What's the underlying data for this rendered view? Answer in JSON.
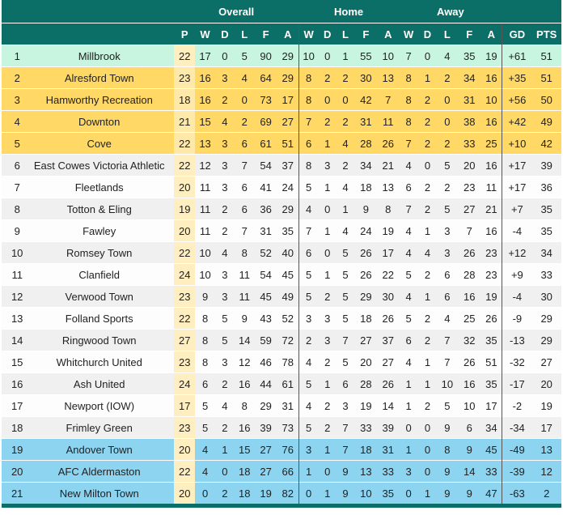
{
  "header_groups": {
    "overall": "Overall",
    "home": "Home",
    "away": "Away"
  },
  "columns": {
    "p": "P",
    "w": "W",
    "d": "D",
    "l": "L",
    "f": "F",
    "a": "A",
    "hw": "W",
    "hd": "D",
    "hl": "L",
    "hf": "F",
    "ha": "A",
    "aw": "W",
    "ad": "D",
    "al": "L",
    "af": "F",
    "aa": "A",
    "gd": "GD",
    "pts": "PTS"
  },
  "colors": {
    "header": "#0b6e67",
    "champion": "#c8f5df",
    "promotion": "#ffd866",
    "relegation": "#8dd4f1",
    "played": "#ffeebf"
  },
  "rows": [
    {
      "pos": "1",
      "team": "Millbrook",
      "p": "22",
      "w": "17",
      "d": "0",
      "l": "5",
      "f": "90",
      "a": "29",
      "hw": "10",
      "hd": "0",
      "hl": "1",
      "hf": "55",
      "ha": "10",
      "aw": "7",
      "ad": "0",
      "al": "4",
      "af": "35",
      "aa": "19",
      "gd": "+61",
      "pts": "51"
    },
    {
      "pos": "2",
      "team": "Alresford Town",
      "p": "23",
      "w": "16",
      "d": "3",
      "l": "4",
      "f": "64",
      "a": "29",
      "hw": "8",
      "hd": "2",
      "hl": "2",
      "hf": "30",
      "ha": "13",
      "aw": "8",
      "ad": "1",
      "al": "2",
      "af": "34",
      "aa": "16",
      "gd": "+35",
      "pts": "51"
    },
    {
      "pos": "3",
      "team": "Hamworthy Recreation",
      "p": "18",
      "w": "16",
      "d": "2",
      "l": "0",
      "f": "73",
      "a": "17",
      "hw": "8",
      "hd": "0",
      "hl": "0",
      "hf": "42",
      "ha": "7",
      "aw": "8",
      "ad": "2",
      "al": "0",
      "af": "31",
      "aa": "10",
      "gd": "+56",
      "pts": "50"
    },
    {
      "pos": "4",
      "team": "Downton",
      "p": "21",
      "w": "15",
      "d": "4",
      "l": "2",
      "f": "69",
      "a": "27",
      "hw": "7",
      "hd": "2",
      "hl": "2",
      "hf": "31",
      "ha": "11",
      "aw": "8",
      "ad": "2",
      "al": "0",
      "af": "38",
      "aa": "16",
      "gd": "+42",
      "pts": "49"
    },
    {
      "pos": "5",
      "team": "Cove",
      "p": "22",
      "w": "13",
      "d": "3",
      "l": "6",
      "f": "61",
      "a": "51",
      "hw": "6",
      "hd": "1",
      "hl": "4",
      "hf": "28",
      "ha": "26",
      "aw": "7",
      "ad": "2",
      "al": "2",
      "af": "33",
      "aa": "25",
      "gd": "+10",
      "pts": "42"
    },
    {
      "pos": "6",
      "team": "East Cowes Victoria Athletic",
      "p": "22",
      "w": "12",
      "d": "3",
      "l": "7",
      "f": "54",
      "a": "37",
      "hw": "8",
      "hd": "3",
      "hl": "2",
      "hf": "34",
      "ha": "21",
      "aw": "4",
      "ad": "0",
      "al": "5",
      "af": "20",
      "aa": "16",
      "gd": "+17",
      "pts": "39"
    },
    {
      "pos": "7",
      "team": "Fleetlands",
      "p": "20",
      "w": "11",
      "d": "3",
      "l": "6",
      "f": "41",
      "a": "24",
      "hw": "5",
      "hd": "1",
      "hl": "4",
      "hf": "18",
      "ha": "13",
      "aw": "6",
      "ad": "2",
      "al": "2",
      "af": "23",
      "aa": "11",
      "gd": "+17",
      "pts": "36"
    },
    {
      "pos": "8",
      "team": "Totton & Eling",
      "p": "19",
      "w": "11",
      "d": "2",
      "l": "6",
      "f": "36",
      "a": "29",
      "hw": "4",
      "hd": "0",
      "hl": "1",
      "hf": "9",
      "ha": "8",
      "aw": "7",
      "ad": "2",
      "al": "5",
      "af": "27",
      "aa": "21",
      "gd": "+7",
      "pts": "35"
    },
    {
      "pos": "9",
      "team": "Fawley",
      "p": "20",
      "w": "11",
      "d": "2",
      "l": "7",
      "f": "31",
      "a": "35",
      "hw": "7",
      "hd": "1",
      "hl": "4",
      "hf": "24",
      "ha": "19",
      "aw": "4",
      "ad": "1",
      "al": "3",
      "af": "7",
      "aa": "16",
      "gd": "-4",
      "pts": "35"
    },
    {
      "pos": "10",
      "team": "Romsey Town",
      "p": "22",
      "w": "10",
      "d": "4",
      "l": "8",
      "f": "52",
      "a": "40",
      "hw": "6",
      "hd": "0",
      "hl": "5",
      "hf": "26",
      "ha": "17",
      "aw": "4",
      "ad": "4",
      "al": "3",
      "af": "26",
      "aa": "23",
      "gd": "+12",
      "pts": "34"
    },
    {
      "pos": "11",
      "team": "Clanfield",
      "p": "24",
      "w": "10",
      "d": "3",
      "l": "11",
      "f": "54",
      "a": "45",
      "hw": "5",
      "hd": "1",
      "hl": "5",
      "hf": "26",
      "ha": "22",
      "aw": "5",
      "ad": "2",
      "al": "6",
      "af": "28",
      "aa": "23",
      "gd": "+9",
      "pts": "33"
    },
    {
      "pos": "12",
      "team": "Verwood Town",
      "p": "23",
      "w": "9",
      "d": "3",
      "l": "11",
      "f": "45",
      "a": "49",
      "hw": "5",
      "hd": "2",
      "hl": "5",
      "hf": "29",
      "ha": "30",
      "aw": "4",
      "ad": "1",
      "al": "6",
      "af": "16",
      "aa": "19",
      "gd": "-4",
      "pts": "30"
    },
    {
      "pos": "13",
      "team": "Folland Sports",
      "p": "22",
      "w": "8",
      "d": "5",
      "l": "9",
      "f": "43",
      "a": "52",
      "hw": "3",
      "hd": "3",
      "hl": "5",
      "hf": "18",
      "ha": "26",
      "aw": "5",
      "ad": "2",
      "al": "4",
      "af": "25",
      "aa": "26",
      "gd": "-9",
      "pts": "29"
    },
    {
      "pos": "14",
      "team": "Ringwood Town",
      "p": "27",
      "w": "8",
      "d": "5",
      "l": "14",
      "f": "59",
      "a": "72",
      "hw": "2",
      "hd": "3",
      "hl": "7",
      "hf": "27",
      "ha": "37",
      "aw": "6",
      "ad": "2",
      "al": "7",
      "af": "32",
      "aa": "35",
      "gd": "-13",
      "pts": "29"
    },
    {
      "pos": "15",
      "team": "Whitchurch United",
      "p": "23",
      "w": "8",
      "d": "3",
      "l": "12",
      "f": "46",
      "a": "78",
      "hw": "4",
      "hd": "2",
      "hl": "5",
      "hf": "20",
      "ha": "27",
      "aw": "4",
      "ad": "1",
      "al": "7",
      "af": "26",
      "aa": "51",
      "gd": "-32",
      "pts": "27"
    },
    {
      "pos": "16",
      "team": "Ash United",
      "p": "24",
      "w": "6",
      "d": "2",
      "l": "16",
      "f": "44",
      "a": "61",
      "hw": "5",
      "hd": "1",
      "hl": "6",
      "hf": "28",
      "ha": "26",
      "aw": "1",
      "ad": "1",
      "al": "10",
      "af": "16",
      "aa": "35",
      "gd": "-17",
      "pts": "20"
    },
    {
      "pos": "17",
      "team": "Newport (IOW)",
      "p": "17",
      "w": "5",
      "d": "4",
      "l": "8",
      "f": "29",
      "a": "31",
      "hw": "4",
      "hd": "2",
      "hl": "3",
      "hf": "19",
      "ha": "14",
      "aw": "1",
      "ad": "2",
      "al": "5",
      "af": "10",
      "aa": "17",
      "gd": "-2",
      "pts": "19"
    },
    {
      "pos": "18",
      "team": "Frimley Green",
      "p": "23",
      "w": "5",
      "d": "2",
      "l": "16",
      "f": "39",
      "a": "73",
      "hw": "5",
      "hd": "2",
      "hl": "7",
      "hf": "33",
      "ha": "39",
      "aw": "0",
      "ad": "0",
      "al": "9",
      "af": "6",
      "aa": "34",
      "gd": "-34",
      "pts": "17"
    },
    {
      "pos": "19",
      "team": "Andover Town",
      "p": "20",
      "w": "4",
      "d": "1",
      "l": "15",
      "f": "27",
      "a": "76",
      "hw": "3",
      "hd": "1",
      "hl": "7",
      "hf": "18",
      "ha": "31",
      "aw": "1",
      "ad": "0",
      "al": "8",
      "af": "9",
      "aa": "45",
      "gd": "-49",
      "pts": "13"
    },
    {
      "pos": "20",
      "team": "AFC Aldermaston",
      "p": "22",
      "w": "4",
      "d": "0",
      "l": "18",
      "f": "27",
      "a": "66",
      "hw": "1",
      "hd": "0",
      "hl": "9",
      "hf": "13",
      "ha": "33",
      "aw": "3",
      "ad": "0",
      "al": "9",
      "af": "14",
      "aa": "33",
      "gd": "-39",
      "pts": "12"
    },
    {
      "pos": "21",
      "team": "New Milton Town",
      "p": "20",
      "w": "0",
      "d": "2",
      "l": "18",
      "f": "19",
      "a": "82",
      "hw": "0",
      "hd": "1",
      "hl": "9",
      "hf": "10",
      "ha": "35",
      "aw": "0",
      "ad": "1",
      "al": "9",
      "af": "9",
      "aa": "47",
      "gd": "-63",
      "pts": "2"
    }
  ]
}
